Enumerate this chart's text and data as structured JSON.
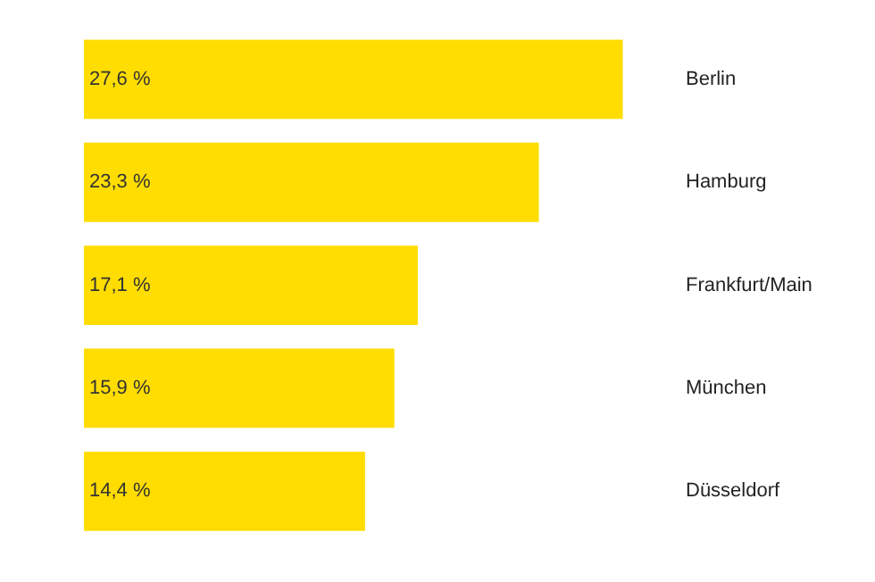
{
  "chart_data": {
    "type": "bar",
    "orientation": "horizontal",
    "categories": [
      "Berlin",
      "Hamburg",
      "Frankfurt/Main",
      "München",
      "Düsseldorf"
    ],
    "values": [
      27.6,
      23.3,
      17.1,
      15.9,
      14.4
    ],
    "value_labels": [
      "27,6 %",
      "23,3 %",
      "17,1 %",
      "15,9 %",
      "14,4 %"
    ],
    "color": "#ffdd00",
    "tick_labels": "y"
  }
}
